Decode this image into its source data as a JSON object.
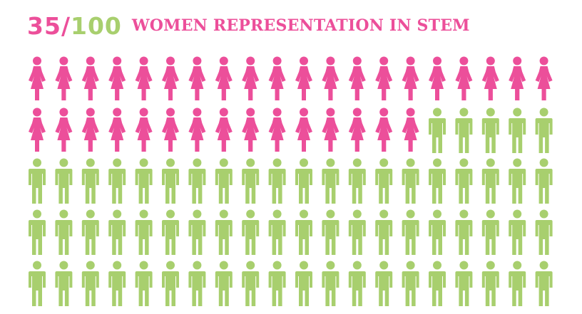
{
  "header": {
    "highlight_count": "35",
    "separator": "/",
    "total_count": "100",
    "title": "WOMEN REPRESENTATION IN STEM"
  },
  "colors": {
    "women": "#ec4f9a",
    "men": "#a8cf6e"
  },
  "icons": {
    "women": "woman-figure-icon",
    "men": "man-figure-icon"
  },
  "chart_data": {
    "type": "pictograph",
    "title": "WOMEN REPRESENTATION IN STEM",
    "total": 100,
    "rows": 5,
    "columns": 20,
    "categories": [
      "women",
      "men"
    ],
    "values": [
      35,
      65
    ]
  }
}
